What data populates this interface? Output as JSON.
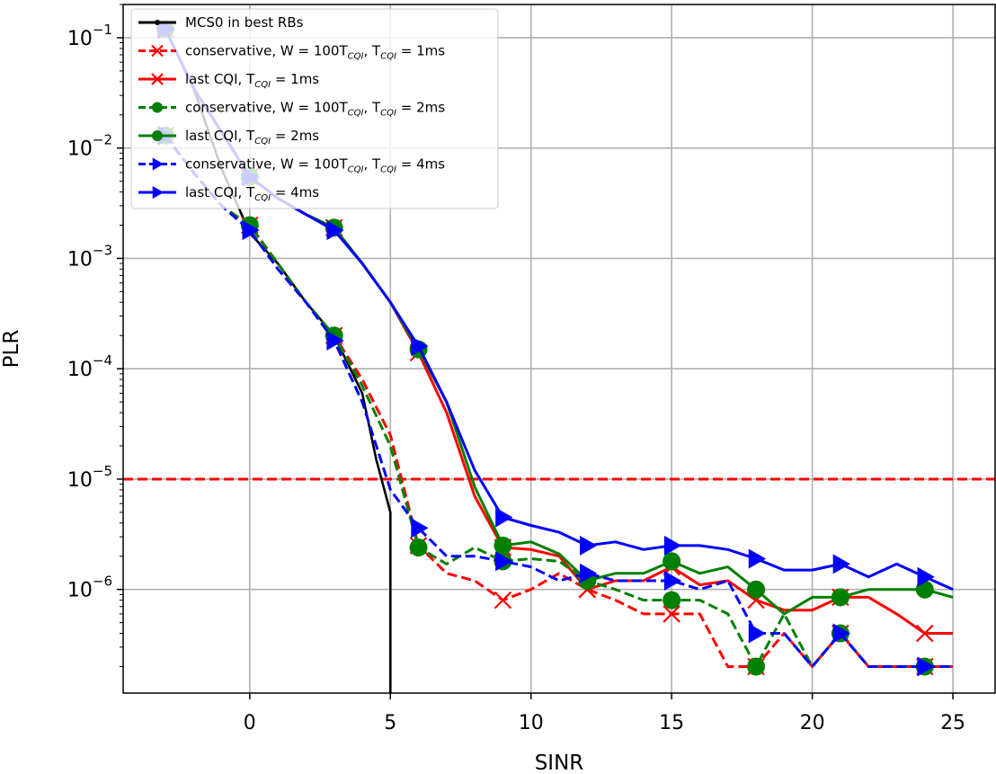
{
  "chart_data": {
    "type": "line",
    "xlabel": "SINR",
    "ylabel": "PLR",
    "yscale": "log",
    "xlim": [
      -4.5,
      26.5
    ],
    "ylim": [
      1.15e-07,
      0.2
    ],
    "xticks": [
      0,
      5,
      10,
      15,
      20,
      25
    ],
    "yticks": [
      {
        "value": 0.1,
        "base": "10",
        "exp": "−1"
      },
      {
        "value": 0.01,
        "base": "10",
        "exp": "−2"
      },
      {
        "value": 0.001,
        "base": "10",
        "exp": "−3"
      },
      {
        "value": 0.0001,
        "base": "10",
        "exp": "−4"
      },
      {
        "value": 1e-05,
        "base": "10",
        "exp": "−5"
      },
      {
        "value": 1e-06,
        "base": "10",
        "exp": "−6"
      }
    ],
    "grid": true,
    "legend_position": "upper-left",
    "reference_line": {
      "y": 1e-05,
      "color": "#ff0000",
      "style": "dashed"
    },
    "series": [
      {
        "legend": {
          "pre": "MCS0 in best RBs",
          "sub1": "",
          "mid": "",
          "sub2": "",
          "post": ""
        },
        "color": "#000000",
        "dash": "solid",
        "marker": "dot",
        "marker_every": 1,
        "x": [
          -3,
          -2,
          -1,
          0,
          1,
          2,
          3,
          4,
          4.5,
          5,
          5
        ],
        "y": [
          0.12,
          0.035,
          0.0065,
          0.0017,
          0.0009,
          0.0004,
          0.0002,
          6e-05,
          1.5e-05,
          5e-06,
          1.15e-07
        ]
      },
      {
        "legend": {
          "pre": "conservative, W = 100T",
          "sub1": "CQI",
          "mid": ", T",
          "sub2": "CQI",
          "post": " = 1ms"
        },
        "color": "#ff0000",
        "dash": "dashed",
        "marker": "x",
        "marker_every": 3,
        "x": [
          -3,
          -2,
          -1,
          0,
          1,
          2,
          3,
          4,
          5,
          6,
          7,
          8,
          9,
          10,
          11,
          12,
          13,
          14,
          15,
          16,
          17,
          18,
          19,
          20,
          21,
          22,
          23,
          24,
          25
        ],
        "y": [
          0.013,
          0.006,
          0.003,
          0.002,
          0.0009,
          0.0004,
          0.0002,
          8e-05,
          2.5e-05,
          2.5e-06,
          1.4e-06,
          1.2e-06,
          8e-07,
          1e-06,
          1.4e-06,
          1e-06,
          8e-07,
          6e-07,
          6e-07,
          6e-07,
          2e-07,
          2e-07,
          4e-07,
          2e-07,
          4e-07,
          2e-07,
          2e-07,
          2e-07,
          2e-07
        ]
      },
      {
        "legend": {
          "pre": "last CQI, T",
          "sub1": "CQI",
          "mid": " = 1ms",
          "sub2": "",
          "post": ""
        },
        "color": "#ff0000",
        "dash": "solid",
        "marker": "x",
        "marker_every": 3,
        "x": [
          -3,
          -2,
          -1,
          0,
          1,
          2,
          3,
          4,
          5,
          6,
          7,
          8,
          9,
          10,
          11,
          12,
          13,
          14,
          15,
          16,
          17,
          18,
          19,
          20,
          21,
          22,
          23,
          24,
          25
        ],
        "y": [
          0.12,
          0.035,
          0.014,
          0.0055,
          0.0035,
          0.0025,
          0.0019,
          0.0009,
          0.0004,
          0.00014,
          4e-05,
          7e-06,
          2.4e-06,
          2.3e-06,
          2e-06,
          1e-06,
          1.2e-06,
          1.2e-06,
          1.6e-06,
          1.1e-06,
          1.2e-06,
          8e-07,
          6.5e-07,
          6.5e-07,
          8.5e-07,
          8.5e-07,
          6e-07,
          4e-07,
          4e-07
        ]
      },
      {
        "legend": {
          "pre": "conservative, W = 100T",
          "sub1": "CQI",
          "mid": ", T",
          "sub2": "CQI",
          "post": " = 2ms"
        },
        "color": "#008000",
        "dash": "dashed",
        "marker": "o",
        "marker_every": 3,
        "x": [
          -3,
          -2,
          -1,
          0,
          1,
          2,
          3,
          4,
          5,
          6,
          7,
          8,
          9,
          10,
          11,
          12,
          13,
          14,
          15,
          16,
          17,
          18,
          19,
          20,
          21,
          22,
          23,
          24,
          25
        ],
        "y": [
          0.013,
          0.006,
          0.003,
          0.002,
          0.0009,
          0.0004,
          0.0002,
          7e-05,
          2e-05,
          2.4e-06,
          1.7e-06,
          2.4e-06,
          1.8e-06,
          1.9e-06,
          1.8e-06,
          1.2e-06,
          1e-06,
          8e-07,
          8e-07,
          8e-07,
          6e-07,
          2e-07,
          6e-07,
          2e-07,
          4e-07,
          2e-07,
          2e-07,
          2e-07,
          2e-07
        ]
      },
      {
        "legend": {
          "pre": "last CQI, T",
          "sub1": "CQI",
          "mid": " = 2ms",
          "sub2": "",
          "post": ""
        },
        "color": "#008000",
        "dash": "solid",
        "marker": "o",
        "marker_every": 3,
        "x": [
          -3,
          -2,
          -1,
          0,
          1,
          2,
          3,
          4,
          5,
          6,
          7,
          8,
          9,
          10,
          11,
          12,
          13,
          14,
          15,
          16,
          17,
          18,
          19,
          20,
          21,
          22,
          23,
          24,
          25
        ],
        "y": [
          0.12,
          0.035,
          0.014,
          0.0055,
          0.0035,
          0.0025,
          0.0019,
          0.0009,
          0.0004,
          0.00015,
          5e-05,
          8.5e-06,
          2.5e-06,
          2.7e-06,
          2.1e-06,
          1.2e-06,
          1.4e-06,
          1.4e-06,
          1.8e-06,
          1.4e-06,
          1.6e-06,
          1e-06,
          6e-07,
          8.5e-07,
          8.5e-07,
          1e-06,
          1e-06,
          1e-06,
          8.5e-07
        ]
      },
      {
        "legend": {
          "pre": "conservative, W = 100T",
          "sub1": "CQI",
          "mid": ", T",
          "sub2": "CQI",
          "post": " = 4ms"
        },
        "color": "#0000ff",
        "dash": "dashed",
        "marker": "triangle-right",
        "marker_every": 3,
        "x": [
          -3,
          -2,
          -1,
          0,
          1,
          2,
          3,
          4,
          5,
          6,
          7,
          8,
          9,
          10,
          11,
          12,
          13,
          14,
          15,
          16,
          17,
          18,
          19,
          20,
          21,
          22,
          23,
          24,
          25
        ],
        "y": [
          0.013,
          0.006,
          0.003,
          0.0018,
          0.0008,
          0.0004,
          0.00018,
          5e-05,
          8e-06,
          3.6e-06,
          2e-06,
          2e-06,
          1.8e-06,
          1.6e-06,
          1.2e-06,
          1.4e-06,
          1.2e-06,
          1.2e-06,
          1.2e-06,
          1e-06,
          1.2e-06,
          4e-07,
          4e-07,
          2e-07,
          4e-07,
          2e-07,
          2e-07,
          2e-07,
          2e-07
        ]
      },
      {
        "legend": {
          "pre": "last CQI, T",
          "sub1": "CQI",
          "mid": " = 4ms",
          "sub2": "",
          "post": ""
        },
        "color": "#0000ff",
        "dash": "solid",
        "marker": "triangle-right",
        "marker_every": 3,
        "x": [
          -3,
          -2,
          -1,
          0,
          1,
          2,
          3,
          4,
          5,
          6,
          7,
          8,
          9,
          10,
          11,
          12,
          13,
          14,
          15,
          16,
          17,
          18,
          19,
          20,
          21,
          22,
          23,
          24,
          25
        ],
        "y": [
          0.12,
          0.035,
          0.014,
          0.0055,
          0.0035,
          0.0025,
          0.0018,
          0.0009,
          0.0004,
          0.00016,
          5e-05,
          1.2e-05,
          4.5e-06,
          3.8e-06,
          3.3e-06,
          2.5e-06,
          2.7e-06,
          2.3e-06,
          2.5e-06,
          2.5e-06,
          2.3e-06,
          1.9e-06,
          1.5e-06,
          1.5e-06,
          1.7e-06,
          1.3e-06,
          1.7e-06,
          1.3e-06,
          1e-06
        ]
      }
    ]
  }
}
